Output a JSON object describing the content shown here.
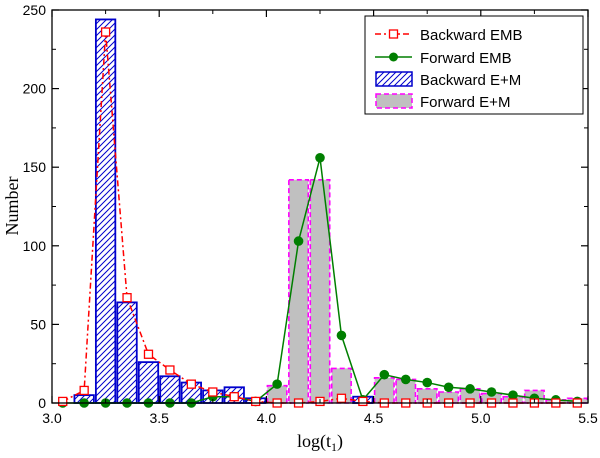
{
  "chart_data": {
    "type": "bar",
    "xlabel": "log(t",
    "xlabel_sub": "1",
    "xlabel_close": ")",
    "ylabel": "Number",
    "xlim": [
      3.0,
      5.5
    ],
    "ylim": [
      0,
      250
    ],
    "x_ticks": [
      3.0,
      3.5,
      4.0,
      4.5,
      5.0,
      5.5
    ],
    "x_tick_labels": [
      "3.0",
      "3.5",
      "4.0",
      "4.5",
      "5.0",
      "5.5"
    ],
    "y_ticks": [
      0,
      50,
      100,
      150,
      200,
      250
    ],
    "y_tick_labels": [
      "0",
      "50",
      "100",
      "150",
      "200",
      "250"
    ],
    "bin_width": 0.1,
    "legend_position": "top-right",
    "series": [
      {
        "name": "Backward EMB",
        "kind": "line",
        "color": "#ff0000",
        "x": [
          3.05,
          3.15,
          3.25,
          3.35,
          3.45,
          3.55,
          3.65,
          3.75,
          3.85,
          3.95,
          4.05,
          4.15,
          4.25,
          4.35,
          4.45,
          4.55,
          4.65,
          4.75,
          4.85,
          4.95,
          5.05,
          5.15,
          5.25,
          5.35,
          5.45
        ],
        "values": [
          1,
          8,
          236,
          67,
          31,
          21,
          12,
          7,
          4,
          1,
          0,
          0,
          1,
          3,
          1,
          0,
          0,
          0,
          0,
          0,
          0,
          0,
          0,
          0,
          0
        ]
      },
      {
        "name": "Forward  EMB",
        "kind": "line",
        "color": "#007f00",
        "x": [
          3.05,
          3.15,
          3.25,
          3.35,
          3.45,
          3.55,
          3.65,
          3.75,
          3.85,
          3.95,
          4.05,
          4.15,
          4.25,
          4.35,
          4.45,
          4.55,
          4.65,
          4.75,
          4.85,
          4.95,
          5.05,
          5.15,
          5.25,
          5.35,
          5.45
        ],
        "values": [
          0,
          0,
          0,
          0,
          0,
          0,
          0,
          4,
          4,
          1,
          12,
          103,
          156,
          43,
          2,
          18,
          15,
          13,
          10,
          9,
          7,
          5,
          3,
          2,
          1
        ]
      },
      {
        "name": "Backward E+M",
        "kind": "bar",
        "color": "#0000cc",
        "x": [
          3.15,
          3.25,
          3.35,
          3.45,
          3.55,
          3.65,
          3.75,
          3.85,
          3.95,
          4.05,
          4.15,
          4.25,
          4.35,
          4.45,
          4.55,
          4.65,
          4.75,
          4.85,
          4.95,
          5.05,
          5.15,
          5.25,
          5.35,
          5.45
        ],
        "values": [
          5,
          244,
          64,
          26,
          17,
          13,
          8,
          10,
          3,
          0,
          0,
          0,
          0,
          4,
          0,
          0,
          0,
          0,
          0,
          0,
          0,
          0,
          0,
          0
        ]
      },
      {
        "name": "Forward  E+M",
        "kind": "bar",
        "color": "#ff00ff",
        "x": [
          3.15,
          3.25,
          3.35,
          3.45,
          3.55,
          3.65,
          3.75,
          3.85,
          3.95,
          4.05,
          4.15,
          4.25,
          4.35,
          4.45,
          4.55,
          4.65,
          4.75,
          4.85,
          4.95,
          5.05,
          5.15,
          5.25,
          5.35,
          5.45
        ],
        "values": [
          0,
          0,
          0,
          0,
          0,
          0,
          0,
          0,
          0,
          11,
          142,
          142,
          22,
          3,
          16,
          15,
          9,
          7,
          9,
          6,
          4,
          8,
          2,
          3
        ]
      }
    ]
  }
}
